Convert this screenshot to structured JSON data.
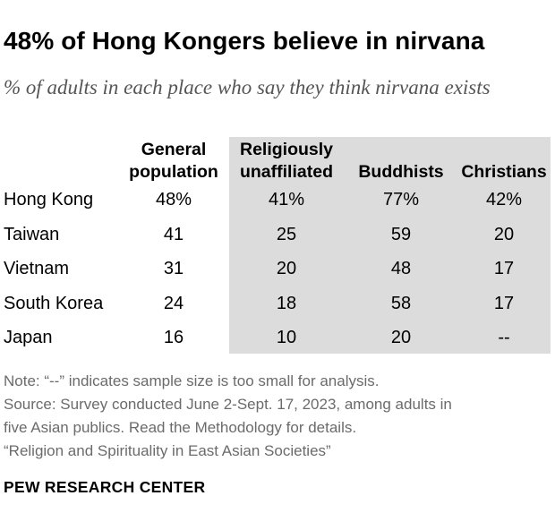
{
  "title": "48% of Hong Kongers believe in nirvana",
  "subtitle": "% of adults in each place who say they think nirvana exists",
  "chart_data": {
    "type": "table",
    "columns": [
      {
        "line1": "General",
        "line2": "population"
      },
      {
        "line1": "Religiously",
        "line2": "unaffiliated"
      },
      {
        "line1": "",
        "line2": "Buddhists"
      },
      {
        "line1": "",
        "line2": "Christians"
      }
    ],
    "rows": [
      {
        "label": "Hong Kong",
        "values": [
          "48%",
          "41%",
          "77%",
          "42%"
        ]
      },
      {
        "label": "Taiwan",
        "values": [
          "41",
          "25",
          "59",
          "20"
        ]
      },
      {
        "label": "Vietnam",
        "values": [
          "31",
          "20",
          "48",
          "17"
        ]
      },
      {
        "label": "South Korea",
        "values": [
          "24",
          "18",
          "58",
          "17"
        ]
      },
      {
        "label": "Japan",
        "values": [
          "16",
          "10",
          "20",
          "--"
        ]
      }
    ]
  },
  "notes": {
    "note": "Note: “--” indicates sample size is too small for analysis.",
    "source1": "Source: Survey conducted June 2-Sept. 17, 2023, among adults in",
    "source2": "five Asian publics. Read the Methodology for details.",
    "report": "“Religion and Spirituality in East Asian Societies”"
  },
  "brand": "PEW RESEARCH CENTER",
  "colors": {
    "shade": "#dcdcdc",
    "note_text": "#6b6b6b",
    "subtitle_text": "#555555"
  }
}
